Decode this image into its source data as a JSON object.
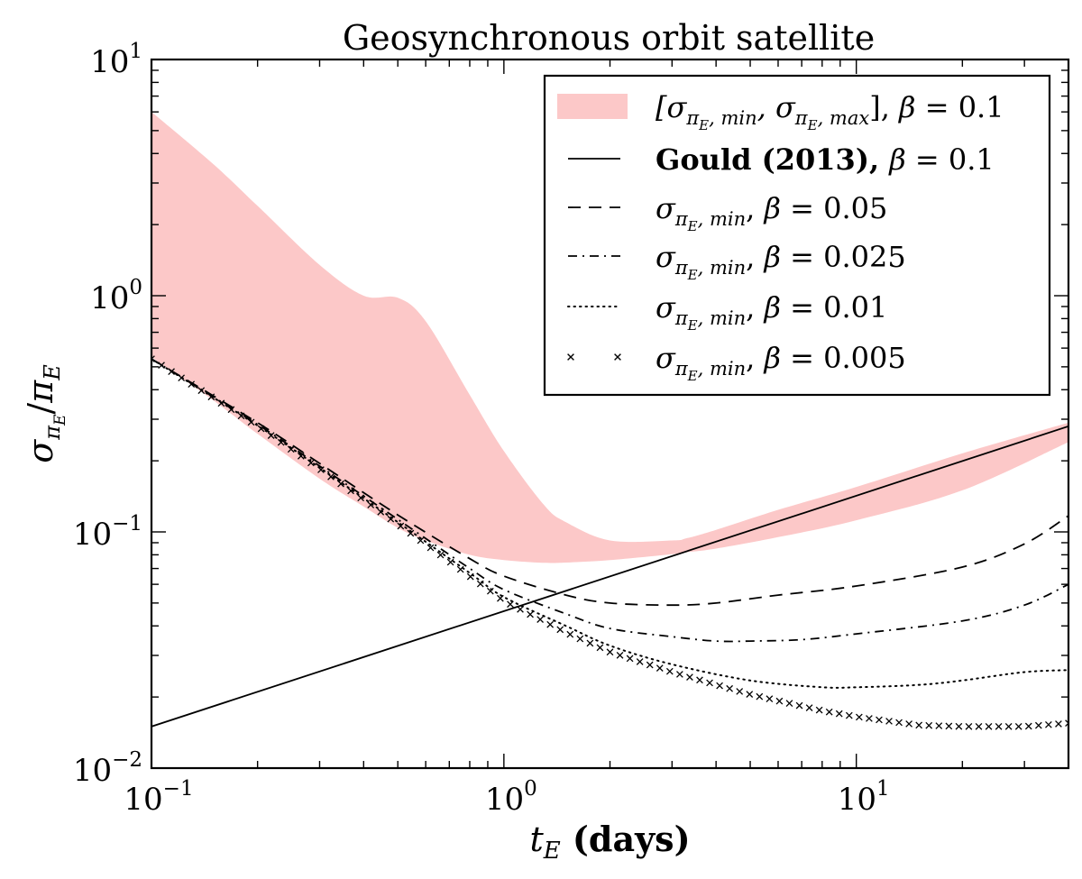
{
  "chart_data": {
    "type": "line",
    "title": "Geosynchronous orbit satellite",
    "xlabel": {
      "var": "t",
      "sub": "E",
      "unit": "(days)"
    },
    "ylabel": {
      "num": "σ",
      "num_sub": "π",
      "num_subsub": "E",
      "den": "π",
      "den_sub": "E"
    },
    "xscale": "log",
    "yscale": "log",
    "xlim": [
      0.1,
      40
    ],
    "ylim": [
      0.01,
      10
    ],
    "x_ticks": [
      {
        "value": 0.1,
        "base": "10",
        "exp": "−1"
      },
      {
        "value": 1,
        "base": "10",
        "exp": "0"
      },
      {
        "value": 10,
        "base": "10",
        "exp": "1"
      }
    ],
    "y_ticks": [
      {
        "value": 0.01,
        "base": "10",
        "exp": "−2"
      },
      {
        "value": 0.1,
        "base": "10",
        "exp": "−1"
      },
      {
        "value": 1,
        "base": "10",
        "exp": "0"
      },
      {
        "value": 10,
        "base": "10",
        "exp": "1"
      }
    ],
    "grid": false,
    "legend_position": "top-right",
    "band": {
      "color": "#fcc8c8",
      "x": [
        0.1,
        0.15,
        0.2,
        0.3,
        0.4,
        0.5,
        0.6,
        0.8,
        1.0,
        1.3,
        1.5,
        2.0,
        3.0,
        3.3,
        4.0,
        6.0,
        10.0,
        20.0,
        40.0
      ],
      "upper": [
        6.0,
        3.6,
        2.4,
        1.35,
        1.0,
        0.98,
        0.78,
        0.38,
        0.22,
        0.13,
        0.11,
        0.092,
        0.092,
        0.094,
        0.102,
        0.124,
        0.155,
        0.215,
        0.29
      ],
      "lower": [
        0.55,
        0.36,
        0.26,
        0.168,
        0.128,
        0.104,
        0.092,
        0.08,
        0.076,
        0.074,
        0.0742,
        0.076,
        0.0805,
        0.082,
        0.085,
        0.095,
        0.112,
        0.15,
        0.24
      ]
    },
    "series": [
      {
        "label_math": "Gould (2013), β = 0.1",
        "style": "solid",
        "x": [
          0.1,
          40
        ],
        "y": [
          0.015,
          0.28
        ]
      },
      {
        "label_math": "σ_{π_E,min}, β = 0.05",
        "style": "dashed",
        "x": [
          0.1,
          0.2,
          0.3,
          0.5,
          0.8,
          1.0,
          1.5,
          2.0,
          3.0,
          4.0,
          6.0,
          10.0,
          20.0,
          30.0,
          40.0
        ],
        "y": [
          0.54,
          0.29,
          0.195,
          0.118,
          0.077,
          0.065,
          0.054,
          0.05,
          0.049,
          0.05,
          0.054,
          0.059,
          0.071,
          0.089,
          0.117
        ]
      },
      {
        "label_math": "σ_{π_E,min}, β = 0.025",
        "style": "dashdot",
        "x": [
          0.1,
          0.2,
          0.3,
          0.5,
          0.8,
          1.0,
          1.5,
          2.0,
          3.0,
          4.0,
          5.0,
          7.0,
          10.0,
          20.0,
          30.0,
          40.0
        ],
        "y": [
          0.54,
          0.285,
          0.19,
          0.113,
          0.07,
          0.057,
          0.045,
          0.039,
          0.036,
          0.0345,
          0.0345,
          0.035,
          0.037,
          0.042,
          0.049,
          0.06
        ]
      },
      {
        "label_math": "σ_{π_E,min}, β = 0.01",
        "style": "dotted",
        "x": [
          0.1,
          0.2,
          0.3,
          0.5,
          0.8,
          1.0,
          1.5,
          2.0,
          3.0,
          5.0,
          8.0,
          10.0,
          15.0,
          20.0,
          30.0,
          40.0
        ],
        "y": [
          0.54,
          0.282,
          0.187,
          0.11,
          0.067,
          0.053,
          0.04,
          0.033,
          0.0275,
          0.0235,
          0.022,
          0.022,
          0.0225,
          0.0235,
          0.0255,
          0.026
        ]
      },
      {
        "label_math": "σ_{π_E,min}, β = 0.005",
        "style": "x-markers",
        "x": [
          0.1,
          0.2,
          0.3,
          0.5,
          0.8,
          1.0,
          1.5,
          2.0,
          3.0,
          5.0,
          8.0,
          10.0,
          15.0,
          20.0,
          30.0,
          40.0
        ],
        "y": [
          0.54,
          0.28,
          0.185,
          0.108,
          0.065,
          0.051,
          0.0375,
          0.031,
          0.0255,
          0.0205,
          0.0175,
          0.0165,
          0.0152,
          0.015,
          0.015,
          0.0155
        ]
      }
    ],
    "legend": [
      {
        "key": "band",
        "parts": [
          {
            "t": "[σ",
            "it": true
          },
          {
            "t": "π",
            "sub": true
          },
          {
            "t": "E",
            "subsub": true
          },
          {
            "t": ", min",
            "sub": true
          },
          {
            "t": ", σ",
            "it": true
          },
          {
            "t": "π",
            "sub": true
          },
          {
            "t": "E",
            "subsub": true
          },
          {
            "t": ", max",
            "sub": true
          },
          {
            "t": "], "
          },
          {
            "t": "β",
            "it": true
          },
          {
            "t": " = 0.1"
          }
        ]
      },
      {
        "key": "solid",
        "parts": [
          {
            "t": "Gould (2013), ",
            "bold": true
          },
          {
            "t": "β",
            "it": true
          },
          {
            "t": " = 0.1"
          }
        ]
      },
      {
        "key": "dashed",
        "parts": [
          {
            "t": "σ",
            "it": true
          },
          {
            "t": "π",
            "sub": true
          },
          {
            "t": "E",
            "subsub": true
          },
          {
            "t": ", min",
            "sub": true
          },
          {
            "t": ", "
          },
          {
            "t": "β",
            "it": true
          },
          {
            "t": " = 0.05"
          }
        ]
      },
      {
        "key": "dashdot",
        "parts": [
          {
            "t": "σ",
            "it": true
          },
          {
            "t": "π",
            "sub": true
          },
          {
            "t": "E",
            "subsub": true
          },
          {
            "t": ", min",
            "sub": true
          },
          {
            "t": ", "
          },
          {
            "t": "β",
            "it": true
          },
          {
            "t": " = 0.025"
          }
        ]
      },
      {
        "key": "dotted",
        "parts": [
          {
            "t": "σ",
            "it": true
          },
          {
            "t": "π",
            "sub": true
          },
          {
            "t": "E",
            "subsub": true
          },
          {
            "t": ", min",
            "sub": true
          },
          {
            "t": ", "
          },
          {
            "t": "β",
            "it": true
          },
          {
            "t": " = 0.01"
          }
        ]
      },
      {
        "key": "x-markers",
        "parts": [
          {
            "t": "σ",
            "it": true
          },
          {
            "t": "π",
            "sub": true
          },
          {
            "t": "E",
            "subsub": true
          },
          {
            "t": ", min",
            "sub": true
          },
          {
            "t": ", "
          },
          {
            "t": "β",
            "it": true
          },
          {
            "t": " = 0.005"
          }
        ]
      }
    ]
  }
}
